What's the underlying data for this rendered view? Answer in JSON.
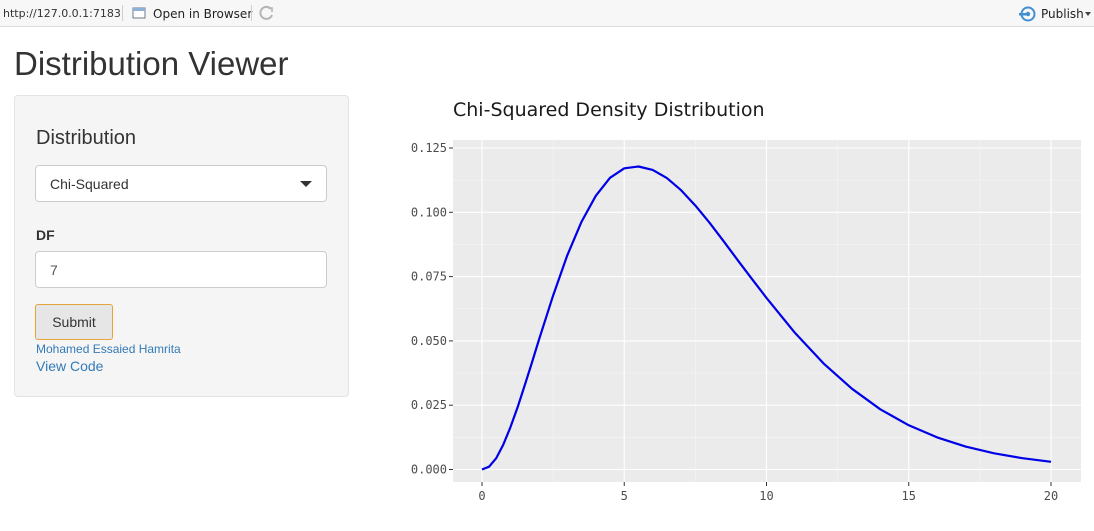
{
  "topbar": {
    "url": "http://127.0.0.1:7183",
    "open_in_browser": "Open in Browser",
    "publish": "Publish",
    "icons": [
      "open-in-browser-icon",
      "refresh-icon",
      "publish-icon",
      "chevron-down-icon"
    ]
  },
  "app": {
    "title": "Distribution Viewer"
  },
  "sidebar": {
    "distribution_label": "Distribution",
    "distribution_selected": "Chi-Squared",
    "df_label": "DF",
    "df_value": "7",
    "submit_label": "Submit",
    "author_link": "Mohamed Essaied Hamrita",
    "view_code_link": "View Code"
  },
  "colors": {
    "line": "#0000e6",
    "panel_bg": "#ebebeb",
    "accent_link": "#337ab7"
  },
  "chart_data": {
    "type": "line",
    "title": "Chi-Squared Density Distribution",
    "xlabel": "",
    "ylabel": "",
    "xlim": [
      0,
      20
    ],
    "ylim": [
      0,
      0.125
    ],
    "x_ticks": [
      0,
      5,
      10,
      15,
      20
    ],
    "x_tick_labels": [
      "0",
      "5",
      "10",
      "15",
      "20"
    ],
    "y_ticks": [
      0.0,
      0.025,
      0.05,
      0.075,
      0.1,
      0.125
    ],
    "y_tick_labels": [
      "0.000",
      "0.025",
      "0.050",
      "0.075",
      "0.100",
      "0.125"
    ],
    "grid": true,
    "series": [
      {
        "x": [
          0,
          0.25,
          0.5,
          0.75,
          1,
          1.25,
          1.5,
          1.75,
          2,
          2.5,
          3,
          3.5,
          4,
          4.5,
          5,
          5.5,
          6,
          6.5,
          7,
          7.5,
          8,
          8.5,
          9,
          9.5,
          10,
          11,
          12,
          13,
          14,
          15,
          16,
          17,
          18,
          19,
          20
        ],
        "values": [
          0,
          0.0011,
          0.0044,
          0.0097,
          0.0164,
          0.0242,
          0.0327,
          0.0414,
          0.0504,
          0.0676,
          0.0833,
          0.0964,
          0.1064,
          0.1134,
          0.1171,
          0.1178,
          0.1165,
          0.1133,
          0.1086,
          0.1026,
          0.0959,
          0.0887,
          0.0812,
          0.0739,
          0.0667,
          0.0531,
          0.0413,
          0.0314,
          0.0234,
          0.0172,
          0.0125,
          0.0089,
          0.0063,
          0.0044,
          0.003
        ]
      }
    ]
  }
}
